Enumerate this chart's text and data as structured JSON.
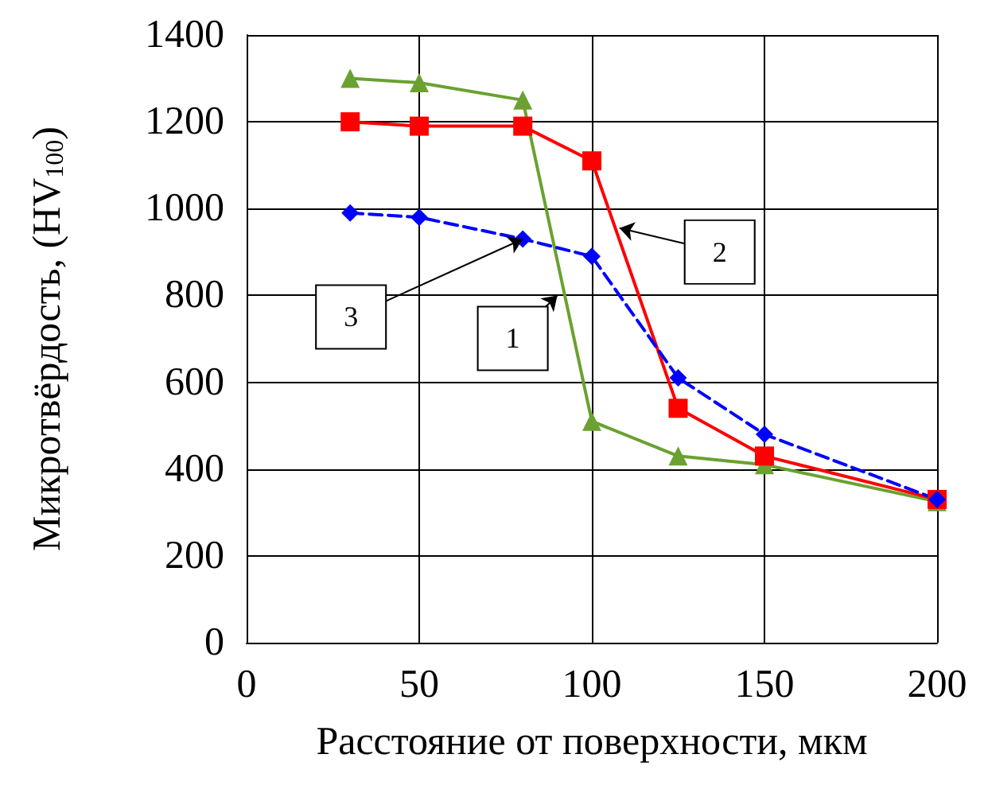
{
  "chart_data": {
    "type": "line",
    "xlabel": "Расстояние от поверхности, мкм",
    "ylabel": "Микротвёрдость, (HV$_{100}$)",
    "x": [
      30,
      50,
      80,
      100,
      125,
      150,
      200
    ],
    "series": [
      {
        "color": "#6aa130",
        "marker": "triangle",
        "line_style": "solid",
        "values": [
          1300,
          1290,
          1250,
          510,
          430,
          410,
          325
        ]
      },
      {
        "color": "#ff0000",
        "marker": "square",
        "line_style": "solid",
        "values": [
          1200,
          1190,
          1190,
          1110,
          540,
          430,
          330
        ]
      },
      {
        "color": "#0000ff",
        "marker": "diamond",
        "line_style": "dashed",
        "values": [
          990,
          980,
          930,
          890,
          610,
          480,
          330
        ]
      }
    ],
    "annotations": [
      {
        "text": "1",
        "x": 90,
        "y": 800
      },
      {
        "text": "2",
        "x": 108,
        "y": 955
      },
      {
        "text": "3",
        "x": 80,
        "y": 930
      }
    ],
    "xlim": [
      0,
      200
    ],
    "xticks": [
      0,
      50,
      100,
      150,
      200
    ],
    "ylim": [
      0,
      1400
    ],
    "yticks": [
      0,
      200,
      400,
      600,
      800,
      1000,
      1200,
      1400
    ],
    "grid": true
  }
}
